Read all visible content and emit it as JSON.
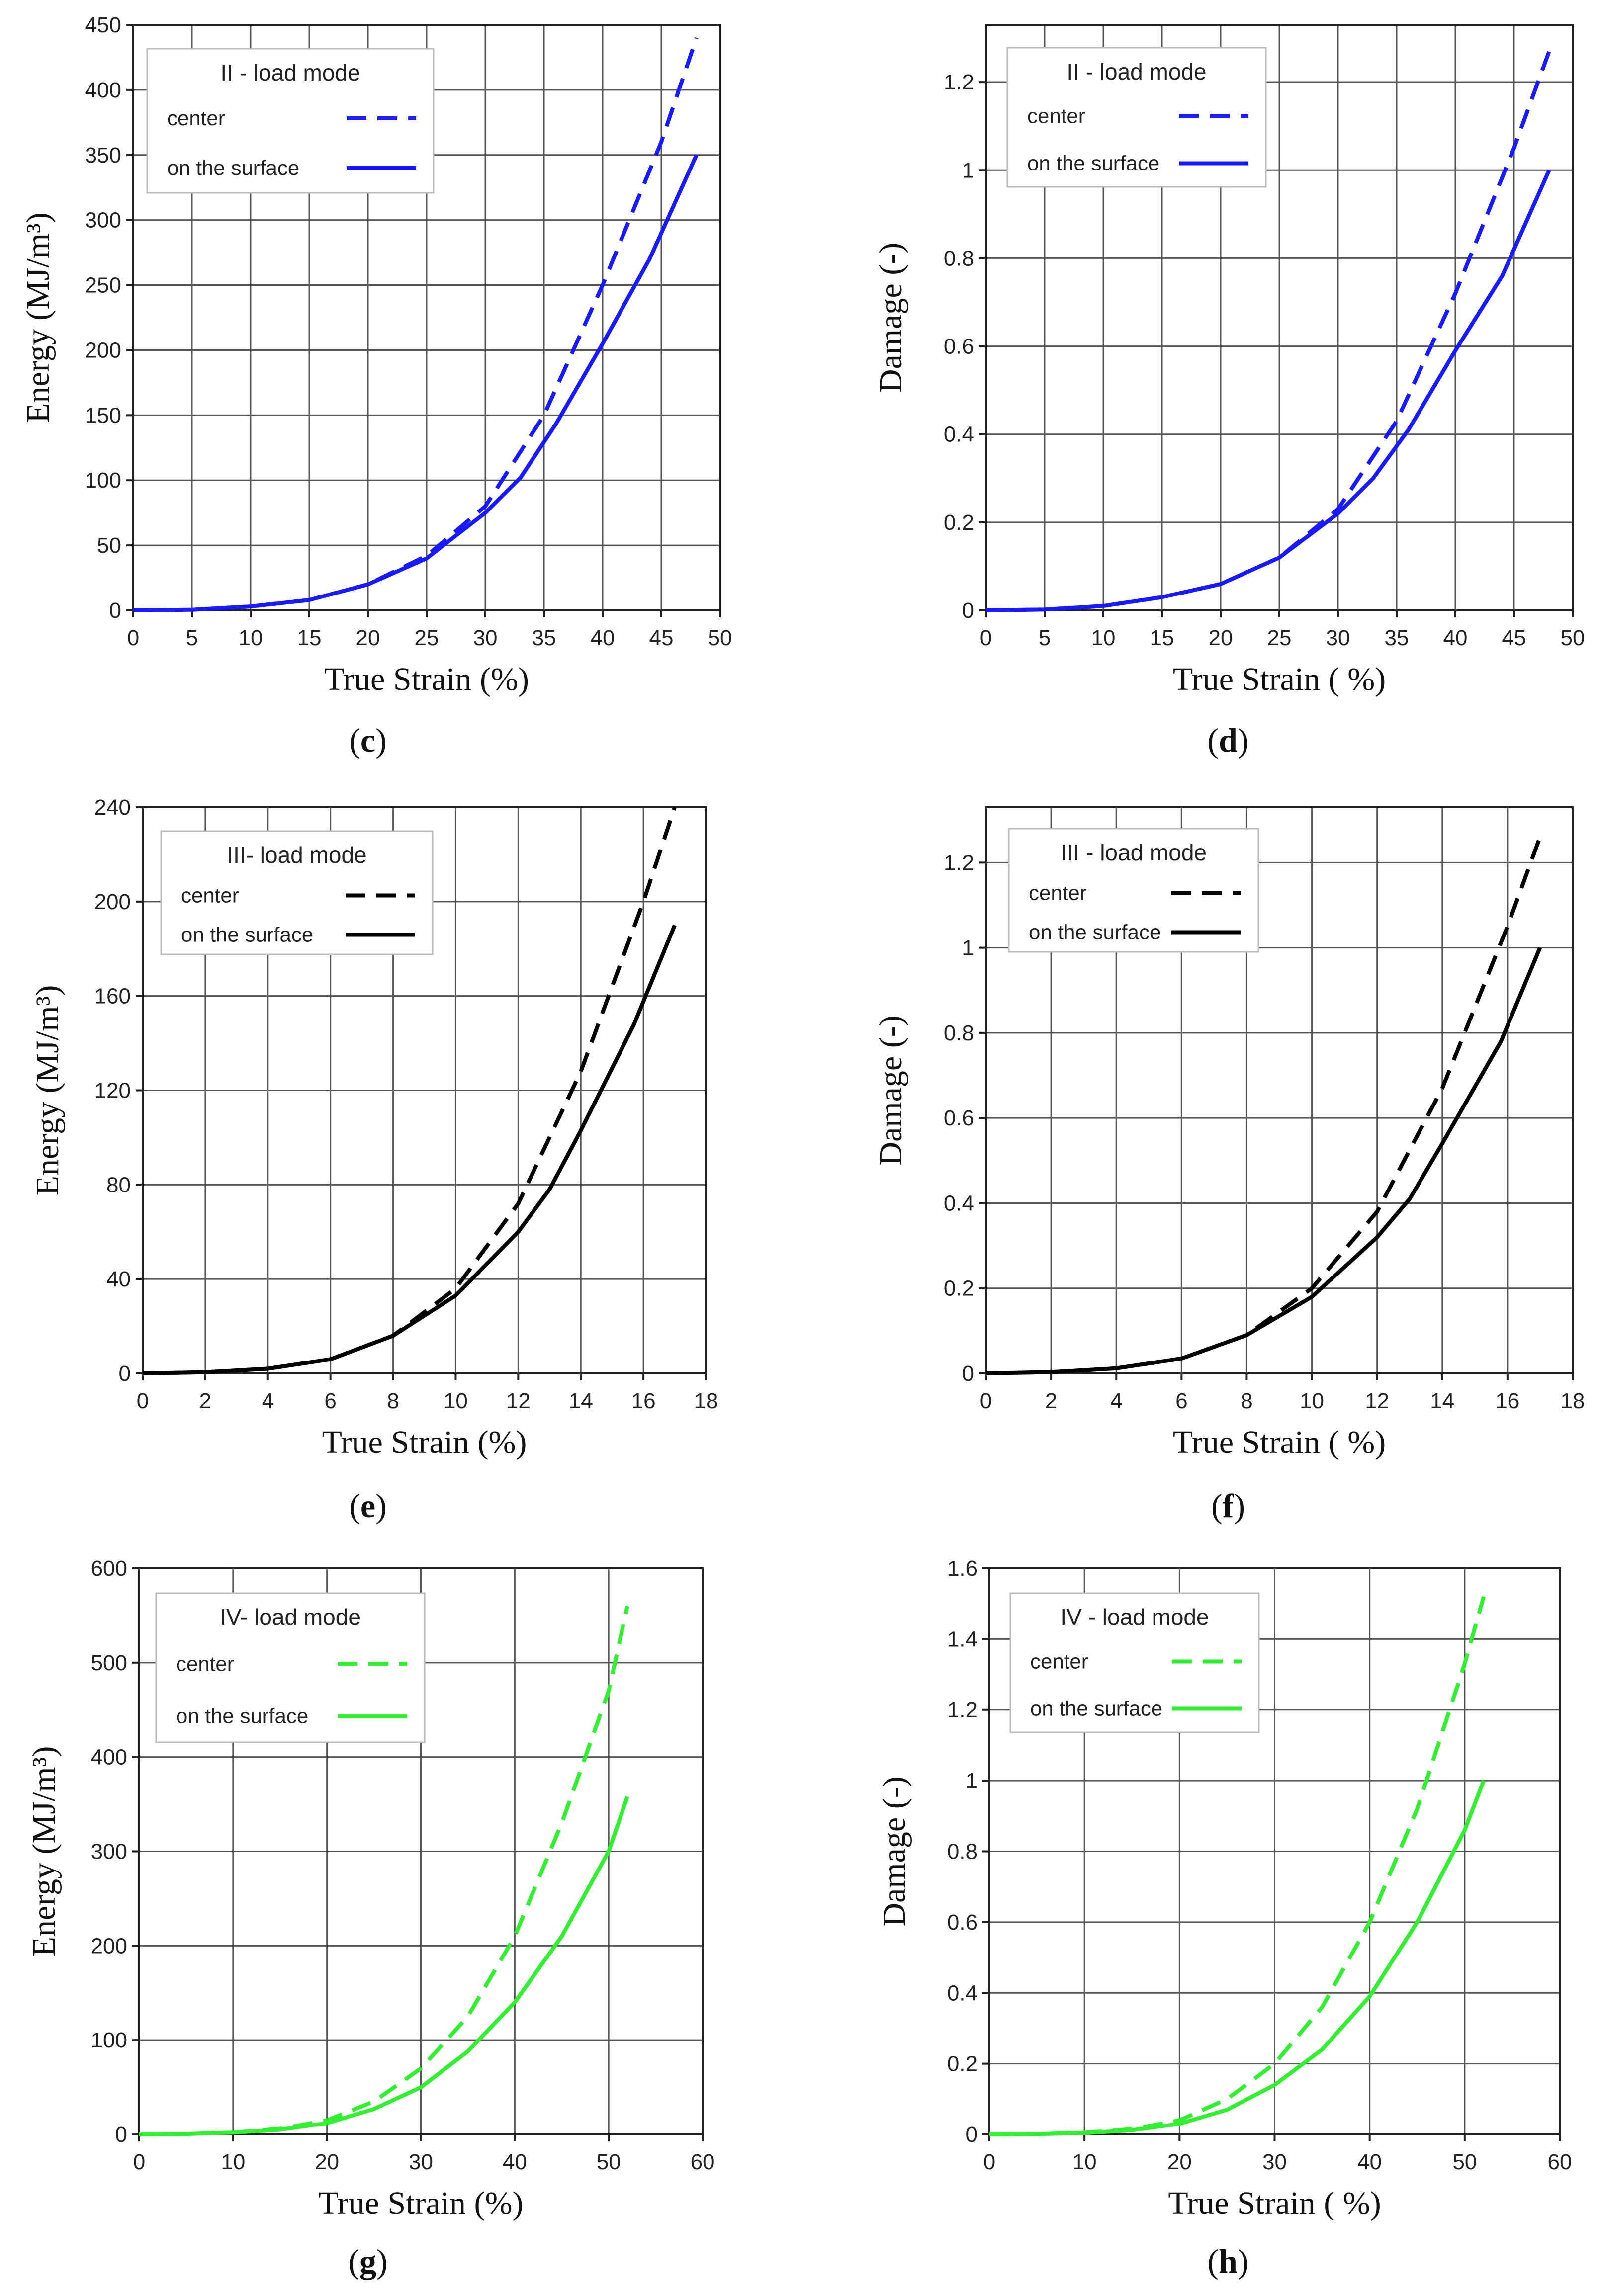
{
  "chart_data": [
    {
      "id": "c",
      "type": "line",
      "caption": "c",
      "color": "#1a1aff",
      "legend": {
        "title": "II - load mode",
        "entries": [
          "center",
          "on the surface"
        ]
      },
      "xlabel": "True Strain (%)",
      "ylabel": "Energy (MJ/m³)",
      "xlim": [
        0,
        50
      ],
      "ylim": [
        0,
        450
      ],
      "xticks": [
        0,
        5,
        10,
        15,
        20,
        25,
        30,
        35,
        40,
        45,
        50
      ],
      "yticks": [
        0,
        50,
        100,
        150,
        200,
        250,
        300,
        350,
        400,
        450
      ],
      "series": [
        {
          "name": "center",
          "style": "dashed",
          "x": [
            0,
            5,
            10,
            15,
            20,
            25,
            30,
            35,
            40,
            45,
            48
          ],
          "y": [
            0,
            0.5,
            3,
            8,
            20,
            42,
            80,
            150,
            250,
            360,
            440
          ]
        },
        {
          "name": "on the surface",
          "style": "solid",
          "x": [
            0,
            5,
            10,
            15,
            20,
            25,
            30,
            33,
            36,
            40,
            44,
            48
          ],
          "y": [
            0,
            0.5,
            3,
            8,
            20,
            40,
            75,
            102,
            143,
            205,
            270,
            350
          ]
        }
      ]
    },
    {
      "id": "d",
      "type": "line",
      "caption": "d",
      "color": "#1a1aff",
      "legend": {
        "title": "II  - load mode",
        "entries": [
          "center",
          "on the surface"
        ]
      },
      "xlabel": "True Strain ( %)",
      "ylabel": "Damage (-)",
      "xlim": [
        0,
        50
      ],
      "ylim": [
        0,
        1.33
      ],
      "xticks": [
        0,
        5,
        10,
        15,
        20,
        25,
        30,
        35,
        40,
        45,
        50
      ],
      "yticks": [
        0,
        0.2,
        0.4,
        0.6,
        0.8,
        1,
        1.2
      ],
      "series": [
        {
          "name": "center",
          "style": "dashed",
          "x": [
            0,
            5,
            10,
            15,
            20,
            25,
            30,
            35,
            40,
            45,
            48
          ],
          "y": [
            0,
            0.002,
            0.01,
            0.03,
            0.06,
            0.12,
            0.23,
            0.43,
            0.72,
            1.05,
            1.27
          ]
        },
        {
          "name": "on the surface",
          "style": "solid",
          "x": [
            0,
            5,
            10,
            15,
            20,
            25,
            30,
            33,
            36,
            40,
            44,
            48
          ],
          "y": [
            0,
            0.002,
            0.01,
            0.03,
            0.06,
            0.12,
            0.22,
            0.3,
            0.41,
            0.59,
            0.76,
            1.0
          ]
        }
      ]
    },
    {
      "id": "e",
      "type": "line",
      "caption": "e",
      "color": "#000000",
      "legend": {
        "title": "III- load mode",
        "entries": [
          "center",
          "on the surface"
        ]
      },
      "xlabel": "True Strain (%)",
      "ylabel": "Energy (MJ/m³)",
      "xlim": [
        0,
        18
      ],
      "ylim": [
        0,
        240
      ],
      "xticks": [
        0,
        2,
        4,
        6,
        8,
        10,
        12,
        14,
        16,
        18
      ],
      "yticks": [
        0,
        40,
        80,
        120,
        160,
        200,
        240
      ],
      "series": [
        {
          "name": "center",
          "style": "dashed",
          "x": [
            0,
            2,
            4,
            6,
            8,
            10,
            12,
            14,
            16,
            17
          ],
          "y": [
            0,
            0.5,
            2,
            6,
            16,
            36,
            72,
            128,
            200,
            240
          ]
        },
        {
          "name": "on the surface",
          "style": "solid",
          "x": [
            0,
            2,
            4,
            6,
            8,
            10,
            12,
            13,
            14,
            15.7,
            17
          ],
          "y": [
            0,
            0.5,
            2,
            6,
            16,
            33,
            60,
            78,
            103,
            148,
            190
          ]
        }
      ]
    },
    {
      "id": "f",
      "type": "line",
      "caption": "f",
      "color": "#000000",
      "legend": {
        "title": "III - load mode",
        "entries": [
          "center",
          "on the surface"
        ]
      },
      "xlabel": "True Strain ( %)",
      "ylabel": "Damage (-)",
      "xlim": [
        0,
        18
      ],
      "ylim": [
        0,
        1.33
      ],
      "xticks": [
        0,
        2,
        4,
        6,
        8,
        10,
        12,
        14,
        16,
        18
      ],
      "yticks": [
        0,
        0.2,
        0.4,
        0.6,
        0.8,
        1,
        1.2
      ],
      "series": [
        {
          "name": "center",
          "style": "dashed",
          "x": [
            0,
            2,
            4,
            6,
            8,
            10,
            12,
            14,
            16,
            17
          ],
          "y": [
            0,
            0.003,
            0.012,
            0.035,
            0.09,
            0.2,
            0.38,
            0.67,
            1.05,
            1.26
          ]
        },
        {
          "name": "on the surface",
          "style": "solid",
          "x": [
            0,
            2,
            4,
            6,
            8,
            10,
            12,
            13,
            14,
            15.8,
            17
          ],
          "y": [
            0,
            0.003,
            0.012,
            0.035,
            0.09,
            0.18,
            0.32,
            0.41,
            0.54,
            0.78,
            1.0
          ]
        }
      ]
    },
    {
      "id": "g",
      "type": "line",
      "caption": "g",
      "color": "#33ee33",
      "legend": {
        "title": "IV- load mode",
        "entries": [
          "center",
          "on the surface"
        ]
      },
      "xlabel": "True Strain (%)",
      "ylabel": "Energy (MJ/m³)",
      "xlim": [
        0,
        60
      ],
      "ylim": [
        0,
        600
      ],
      "xticks": [
        0,
        10,
        20,
        30,
        40,
        50,
        60
      ],
      "yticks": [
        0,
        100,
        200,
        300,
        400,
        500,
        600
      ],
      "series": [
        {
          "name": "center",
          "style": "dashed",
          "x": [
            0,
            5,
            10,
            15,
            20,
            25,
            30,
            35,
            40,
            45,
            50,
            52
          ],
          "y": [
            0,
            0.5,
            2,
            6,
            15,
            35,
            70,
            125,
            210,
            330,
            470,
            560
          ]
        },
        {
          "name": "on the surface",
          "style": "solid",
          "x": [
            0,
            5,
            10,
            15,
            20,
            25,
            30,
            35,
            40,
            45,
            50,
            52
          ],
          "y": [
            0,
            0.5,
            2,
            5,
            12,
            27,
            50,
            88,
            140,
            210,
            300,
            358
          ]
        }
      ]
    },
    {
      "id": "h",
      "type": "line",
      "caption": "h",
      "color": "#33ee33",
      "legend": {
        "title": "IV - load mode",
        "entries": [
          "center",
          "on the surface"
        ]
      },
      "xlabel": "True Strain ( %)",
      "ylabel": "Damage (-)",
      "xlim": [
        0,
        60
      ],
      "ylim": [
        0,
        1.6
      ],
      "xticks": [
        0,
        10,
        20,
        30,
        40,
        50,
        60
      ],
      "yticks": [
        0,
        0.2,
        0.4,
        0.6,
        0.8,
        1,
        1.2,
        1.4,
        1.6
      ],
      "series": [
        {
          "name": "center",
          "style": "dashed",
          "x": [
            0,
            5,
            10,
            15,
            20,
            25,
            30,
            35,
            40,
            45,
            50,
            52
          ],
          "y": [
            0,
            0.001,
            0.005,
            0.015,
            0.04,
            0.1,
            0.2,
            0.36,
            0.6,
            0.92,
            1.33,
            1.52
          ]
        },
        {
          "name": "on the surface",
          "style": "solid",
          "x": [
            0,
            5,
            10,
            15,
            20,
            25,
            30,
            35,
            40,
            45,
            50,
            52
          ],
          "y": [
            0,
            0.001,
            0.004,
            0.012,
            0.03,
            0.07,
            0.14,
            0.24,
            0.39,
            0.6,
            0.86,
            1.0
          ]
        }
      ]
    }
  ]
}
